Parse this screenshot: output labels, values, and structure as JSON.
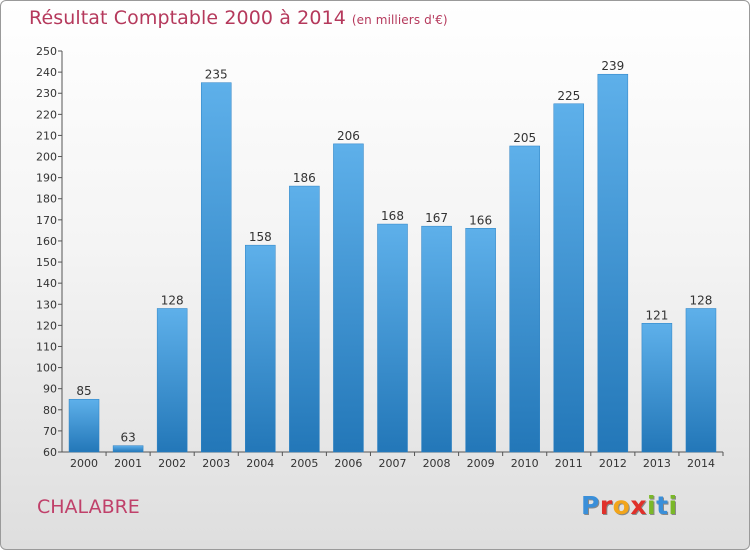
{
  "title": "Résultat Comptable 2000 à 2014",
  "subtitle": "(en milliers d'€)",
  "commune": "CHALABRE",
  "logo": "Proxiti",
  "colors": {
    "title": "#b5395c",
    "bar_top": "#5eb0ea",
    "bar_bottom": "#2377b8",
    "logo_letters": [
      "#3a8fd9",
      "#e0302a",
      "#f2a51a",
      "#e0302a",
      "#7ab828",
      "#3a8fd9",
      "#7ab828"
    ]
  },
  "chart_data": {
    "type": "bar",
    "categories": [
      "2000",
      "2001",
      "2002",
      "2003",
      "2004",
      "2005",
      "2006",
      "2007",
      "2008",
      "2009",
      "2010",
      "2011",
      "2012",
      "2013",
      "2014"
    ],
    "values": [
      85,
      63,
      128,
      235,
      158,
      186,
      206,
      168,
      167,
      166,
      205,
      225,
      239,
      121,
      128
    ],
    "ylim": [
      60,
      250
    ],
    "ytick_step": 10,
    "grid": false,
    "legend": "none"
  }
}
